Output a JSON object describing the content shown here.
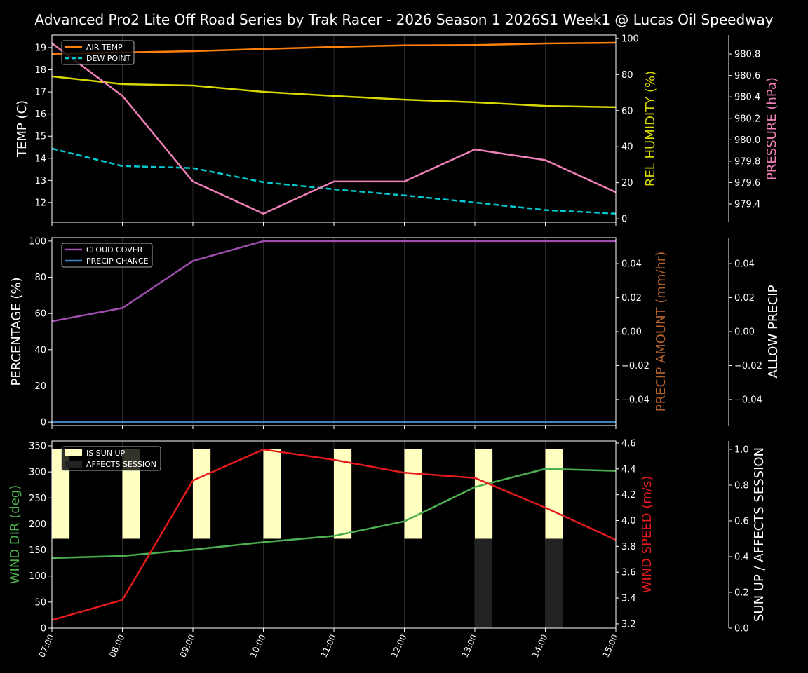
{
  "title": "Advanced Pro2 Lite Off Road Series by Trak Racer - 2026 Season 1 2026S1 Week1 @ Lucas Oil Speedway",
  "chart_data": [
    {
      "type": "line",
      "x": [
        "07:00",
        "08:00",
        "09:00",
        "10:00",
        "11:00",
        "12:00",
        "13:00",
        "14:00",
        "15:00"
      ],
      "grid": "vertical",
      "legend_placement": "top-left",
      "axes": [
        {
          "side": "left",
          "label": "TEMP (C)",
          "label_color": "#ffffff",
          "ylim": [
            11.11,
            19.57
          ],
          "ticks": [
            12,
            13,
            14,
            15,
            16,
            17,
            18,
            19
          ],
          "tick_format": 0
        },
        {
          "side": "right",
          "label": "REL HUMIDITY (%)",
          "label_color": "#d8d800",
          "ylim": [
            -1.9,
            101.9
          ],
          "ticks": [
            0,
            20,
            40,
            60,
            80,
            100
          ],
          "tick_format": 0
        },
        {
          "side": "right-outer",
          "label": "PRESSURE (hPa)",
          "label_color": "#f080b8",
          "ylim": [
            979.23,
            980.977
          ],
          "ticks": [
            979.4,
            979.6,
            979.8,
            980.0,
            980.2,
            980.4,
            980.6,
            980.8
          ],
          "tick_format": 1
        }
      ],
      "series": [
        {
          "name": "AIR TEMP",
          "axis": 0,
          "color": "#ff7f0e",
          "dash": false,
          "legend": true,
          "values": [
            18.72,
            18.78,
            18.84,
            18.94,
            19.03,
            19.1,
            19.12,
            19.19,
            19.22
          ]
        },
        {
          "name": "DEW POINT",
          "axis": 0,
          "color": "#00c8d0",
          "dash": true,
          "legend": true,
          "values": [
            14.44,
            13.65,
            13.56,
            12.92,
            12.6,
            12.32,
            12.0,
            11.66,
            11.5
          ]
        },
        {
          "axis": 1,
          "color": "#d8d800",
          "dash": false,
          "legend": false,
          "values": [
            79,
            74.7,
            73.9,
            70.4,
            68.1,
            66.1,
            64.6,
            62.6,
            61.9
          ]
        },
        {
          "axis": 2,
          "color": "#f080b8",
          "dash": false,
          "legend": false,
          "values": [
            980.9,
            980.41,
            979.61,
            979.31,
            979.61,
            979.61,
            979.91,
            979.81,
            979.51
          ]
        }
      ]
    },
    {
      "type": "line",
      "x": [
        "07:00",
        "08:00",
        "09:00",
        "10:00",
        "11:00",
        "12:00",
        "13:00",
        "14:00",
        "15:00"
      ],
      "grid": "vertical",
      "legend_placement": "top-left",
      "axes": [
        {
          "side": "left",
          "label": "PERCENTAGE (%)",
          "label_color": "#ffffff",
          "ylim": [
            -1.9,
            101.9
          ],
          "ticks": [
            0,
            20,
            40,
            60,
            80,
            100
          ],
          "tick_format": 0
        },
        {
          "side": "right",
          "label": "PRECIP AMOUNT (mm/hr)",
          "label_color": "#b0602a",
          "ylim": [
            -0.0553,
            0.0553
          ],
          "ticks": [
            -0.04,
            -0.02,
            0.0,
            0.02,
            0.04
          ],
          "tick_format": 2
        },
        {
          "side": "right-outer",
          "label": "ALLOW PRECIP",
          "label_color": "#ffffff",
          "ylim": [
            -0.0553,
            0.0553
          ],
          "ticks": [
            -0.04,
            -0.02,
            0.0,
            0.02,
            0.04
          ],
          "tick_format": 2
        }
      ],
      "series": [
        {
          "name": "CLOUD COVER",
          "axis": 0,
          "color": "#a04cb0",
          "dash": false,
          "legend": true,
          "values": [
            55.7,
            63,
            89,
            100,
            100,
            100,
            100,
            100,
            100
          ]
        },
        {
          "name": "PRECIP CHANCE",
          "axis": 0,
          "color": "#3f80c0",
          "dash": false,
          "legend": true,
          "values": [
            0,
            0,
            0,
            0,
            0,
            0,
            0,
            0,
            0
          ]
        }
      ]
    },
    {
      "type": "line",
      "x": [
        "07:00",
        "08:00",
        "09:00",
        "10:00",
        "11:00",
        "12:00",
        "13:00",
        "14:00",
        "15:00"
      ],
      "grid": "vertical",
      "legend_placement": "top-left",
      "show_x_tick_labels": true,
      "axes": [
        {
          "side": "left",
          "label": "WIND DIR (deg)",
          "label_color": "#4caf50",
          "ylim": [
            0,
            359.4
          ],
          "ticks": [
            0,
            50,
            100,
            150,
            200,
            250,
            300,
            350
          ],
          "tick_format": 0
        },
        {
          "side": "right",
          "label": "WIND SPEED (m/s)",
          "label_color": "#e41a1c",
          "ylim": [
            3.167,
            4.616
          ],
          "ticks": [
            3.2,
            3.4,
            3.6,
            3.8,
            4.0,
            4.2,
            4.4,
            4.6
          ],
          "tick_format": 1
        },
        {
          "side": "right-outer",
          "label": "SUN UP / AFFECTS SESSION",
          "label_color": "#ffffff",
          "ylim": [
            0,
            1.047
          ],
          "ticks": [
            0.0,
            0.2,
            0.4,
            0.6,
            0.8,
            1.0
          ],
          "tick_format": 1
        }
      ],
      "bars": [
        {
          "name": "IS SUN UP",
          "axis": 2,
          "color": "#ffffc0",
          "bottom": 0.5,
          "height": 0.5,
          "values": [
            1,
            1,
            1,
            1,
            1,
            1,
            1,
            1,
            0
          ]
        },
        {
          "name": "AFFECTS SESSION",
          "axis": 2,
          "color": "#222222",
          "bottom": 0,
          "height": 0.5,
          "values": [
            0,
            0,
            0,
            0,
            0,
            0,
            1,
            1,
            0
          ]
        }
      ],
      "series": [
        {
          "axis": 0,
          "color": "#4caf50",
          "dash": false,
          "legend": false,
          "values": [
            134.6,
            138.6,
            150.7,
            165,
            177,
            205,
            271,
            306,
            302
          ]
        },
        {
          "axis": 1,
          "color": "#e41a1c",
          "dash": false,
          "legend": false,
          "values": [
            3.23,
            3.385,
            4.31,
            4.55,
            4.47,
            4.37,
            4.33,
            4.1,
            3.85
          ]
        }
      ]
    }
  ]
}
